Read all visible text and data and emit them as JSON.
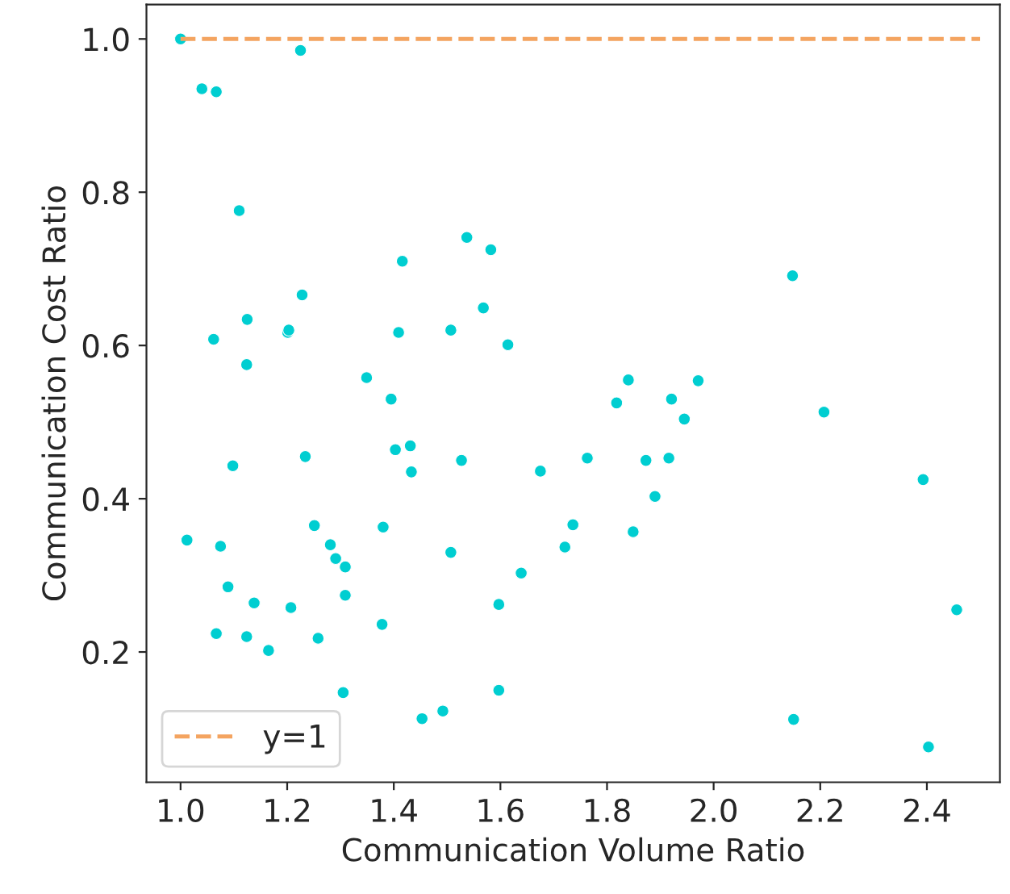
{
  "chart_data": {
    "type": "scatter",
    "xlabel": "Communication Volume Ratio",
    "ylabel": "Communication Cost Ratio",
    "xlim": [
      0.936,
      2.537
    ],
    "ylim": [
      0.03,
      1.045
    ],
    "xticks": [
      {
        "value": 1.0,
        "label": "1.0"
      },
      {
        "value": 1.2,
        "label": "1.2"
      },
      {
        "value": 1.4,
        "label": "1.4"
      },
      {
        "value": 1.6,
        "label": "1.6"
      },
      {
        "value": 1.8,
        "label": "1.8"
      },
      {
        "value": 2.0,
        "label": "2.0"
      },
      {
        "value": 2.2,
        "label": "2.2"
      },
      {
        "value": 2.4,
        "label": "2.4"
      }
    ],
    "yticks": [
      {
        "value": 0.2,
        "label": "0.2"
      },
      {
        "value": 0.4,
        "label": "0.4"
      },
      {
        "value": 0.6,
        "label": "0.6"
      },
      {
        "value": 0.8,
        "label": "0.8"
      },
      {
        "value": 1.0,
        "label": "1.0"
      }
    ],
    "grid": false,
    "legend": "bottom left",
    "series": [
      {
        "color": "#00ced1",
        "marker": "circle",
        "x": [
          1.0,
          1.04,
          1.067,
          1.225,
          1.11,
          1.537,
          1.582,
          1.416,
          1.228,
          1.568,
          1.125,
          1.062,
          1.201,
          1.203,
          1.409,
          1.507,
          1.614,
          1.124,
          1.349,
          1.395,
          1.403,
          1.431,
          1.433,
          1.527,
          1.675,
          1.234,
          1.098,
          1.012,
          1.075,
          1.251,
          1.281,
          1.291,
          1.309,
          1.38,
          1.507,
          1.309,
          1.089,
          1.138,
          1.207,
          1.597,
          1.639,
          1.721,
          1.736,
          1.378,
          1.067,
          1.124,
          1.165,
          1.258,
          1.305,
          1.453,
          1.492,
          1.597,
          1.84,
          1.971,
          1.818,
          1.921,
          1.945,
          2.207,
          1.763,
          1.873,
          1.916,
          1.89,
          1.849,
          2.393,
          2.456,
          2.15,
          2.403,
          2.148
        ],
        "values": [
          1.0,
          0.935,
          0.931,
          0.985,
          0.776,
          0.741,
          0.725,
          0.71,
          0.666,
          0.649,
          0.634,
          0.608,
          0.617,
          0.62,
          0.617,
          0.62,
          0.601,
          0.575,
          0.558,
          0.53,
          0.464,
          0.469,
          0.435,
          0.45,
          0.436,
          0.455,
          0.443,
          0.346,
          0.338,
          0.365,
          0.34,
          0.322,
          0.311,
          0.363,
          0.33,
          0.274,
          0.285,
          0.264,
          0.258,
          0.262,
          0.303,
          0.337,
          0.366,
          0.236,
          0.224,
          0.22,
          0.202,
          0.218,
          0.147,
          0.113,
          0.123,
          0.15,
          0.555,
          0.554,
          0.525,
          0.53,
          0.504,
          0.513,
          0.453,
          0.45,
          0.453,
          0.403,
          0.357,
          0.425,
          0.255,
          0.112,
          0.076,
          0.691
        ]
      },
      {
        "type": "line",
        "name": "y=1",
        "color": "#f4a460",
        "line_style": "dashed",
        "marker": "none",
        "x": [
          1.0,
          2.5
        ],
        "values": [
          1.0,
          1.0
        ]
      }
    ]
  }
}
